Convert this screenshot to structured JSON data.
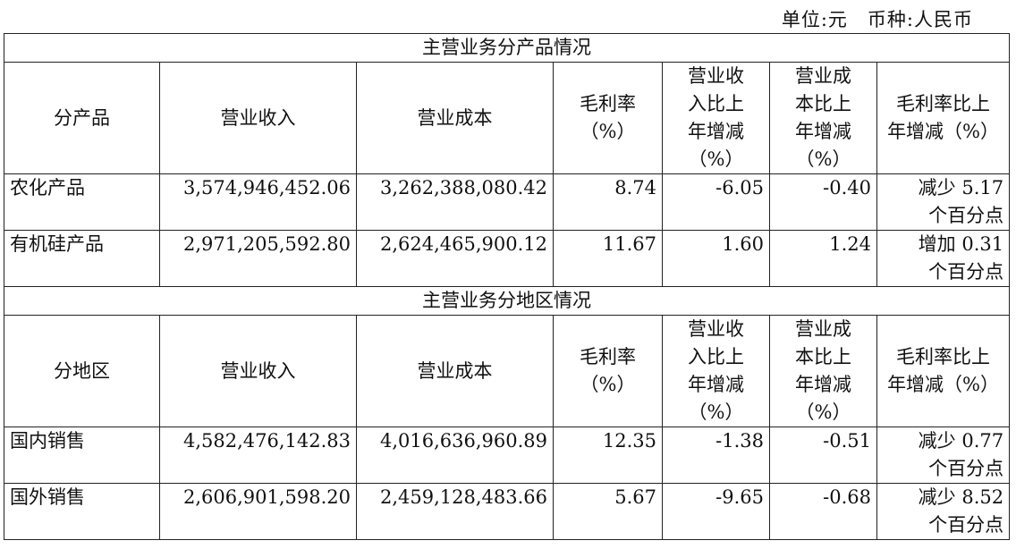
{
  "unit_label": "单位:元　币种:人民币",
  "columns_product": [
    "分产品",
    "营业收入",
    "营业成本",
    "毛利率\n（%）",
    "营业收\n入比上\n年增减\n（%）",
    "营业成\n本比上\n年增减\n（%）",
    "毛利率比上\n年增减（%）"
  ],
  "columns_region": [
    "分地区",
    "营业收入",
    "营业成本",
    "毛利率\n（%）",
    "营业收\n入比上\n年增减\n（%）",
    "营业成\n本比上\n年增减\n（%）",
    "毛利率比上\n年增减（%）"
  ],
  "section_product": "主营业务分产品情况",
  "section_region": "主营业务分地区情况",
  "products": [
    [
      "农化产品",
      "3,574,946,452.06",
      "3,262,388,080.42",
      "8.74",
      "-6.05",
      "-0.40",
      "减少 5.17\n个百分点"
    ],
    [
      "有机硅产品",
      "2,971,205,592.80",
      "2,624,465,900.12",
      "11.67",
      "1.60",
      "1.24",
      "增加 0.31\n个百分点"
    ]
  ],
  "regions": [
    [
      "国内销售",
      "4,582,476,142.83",
      "4,016,636,960.89",
      "12.35",
      "-1.38",
      "-0.51",
      "减少 0.77\n个百分点"
    ],
    [
      "国外销售",
      "2,606,901,598.20",
      "2,459,128,483.66",
      "5.67",
      "-9.65",
      "-0.68",
      "减少 8.52\n个百分点"
    ]
  ]
}
